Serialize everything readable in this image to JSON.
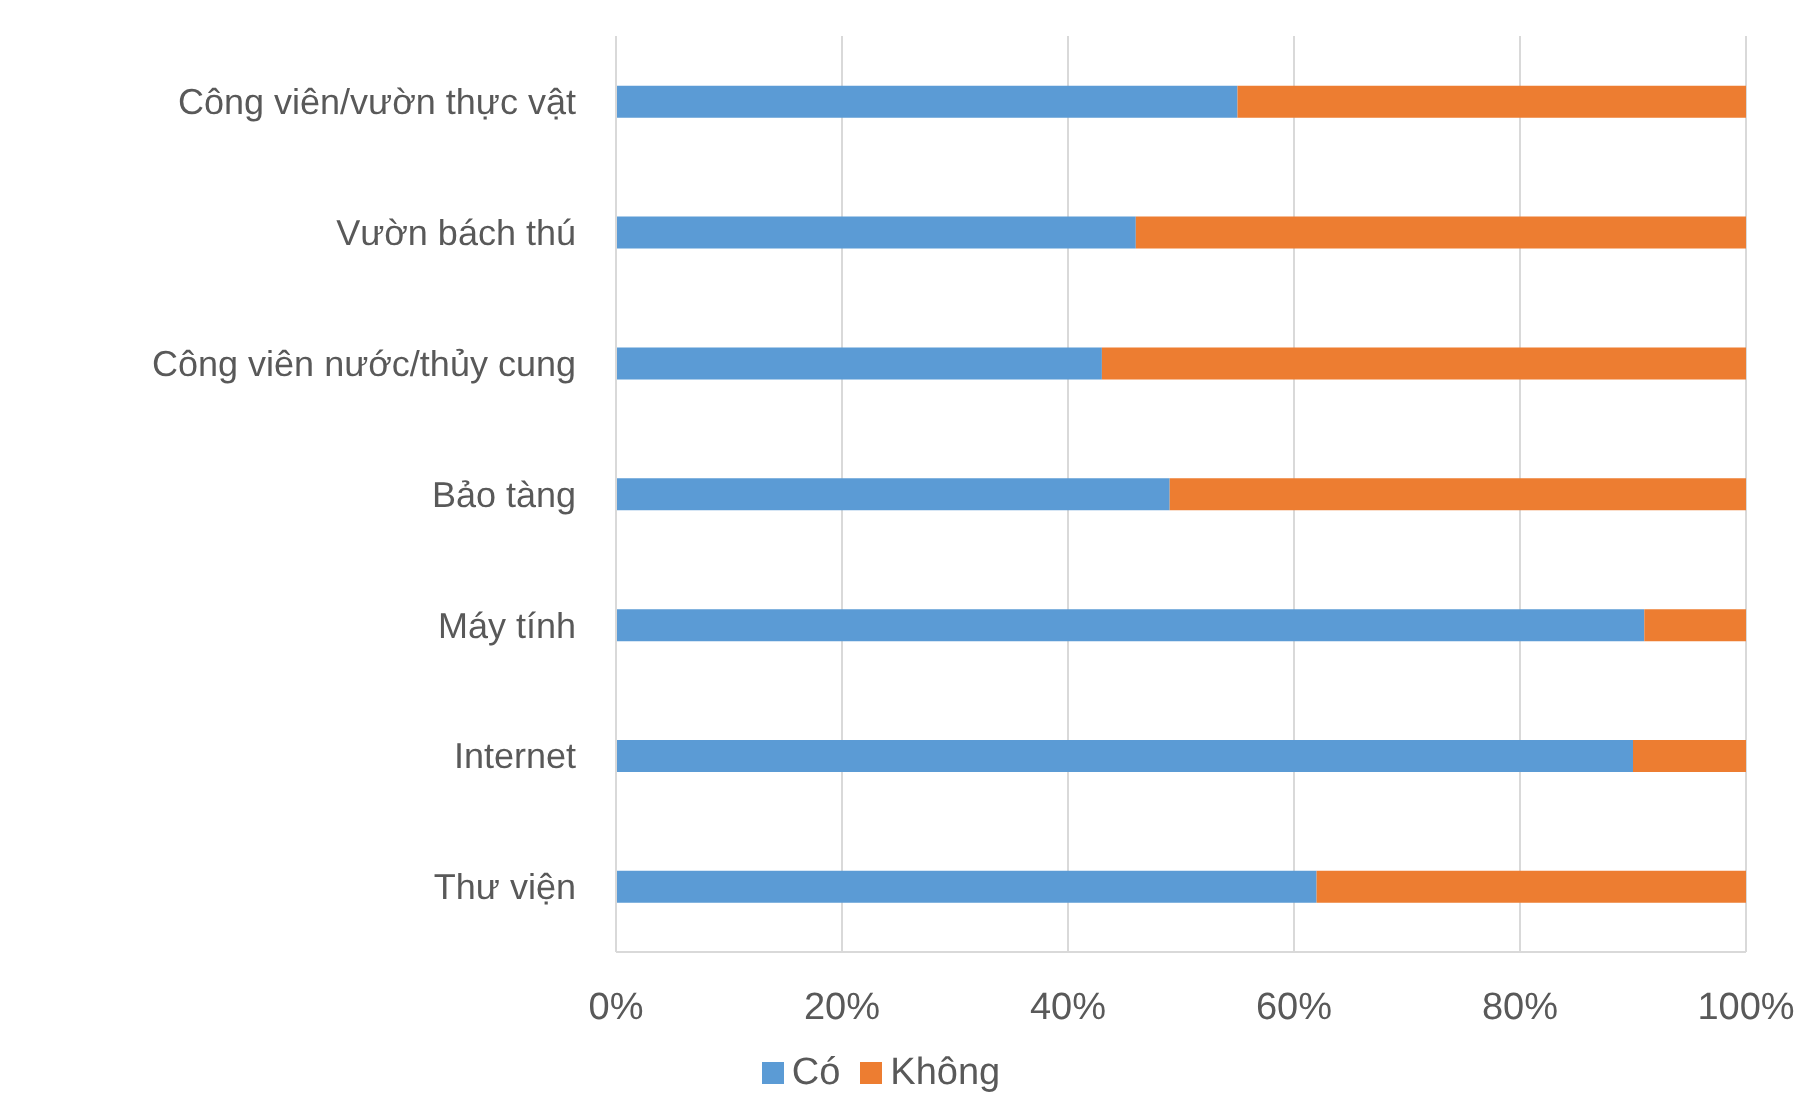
{
  "chart_data": {
    "type": "bar",
    "orientation": "horizontal",
    "stacked": true,
    "categories": [
      "Công viên/vườn thực vật",
      "Vườn bách thú",
      "Công viên nước/thủy cung",
      "Bảo tàng",
      "Máy tính",
      "Internet",
      "Thư viện"
    ],
    "series": [
      {
        "name": "Có",
        "color": "#5b9bd5",
        "values": [
          55,
          46,
          43,
          49,
          91,
          90,
          62
        ]
      },
      {
        "name": "Không",
        "color": "#ed7d31",
        "values": [
          45,
          54,
          57,
          51,
          9,
          10,
          38
        ]
      }
    ],
    "xlim": [
      0,
      100
    ],
    "xticks": [
      {
        "value": 0,
        "label": "0%"
      },
      {
        "value": 20,
        "label": "20%"
      },
      {
        "value": 40,
        "label": "40%"
      },
      {
        "value": 60,
        "label": "60%"
      },
      {
        "value": 80,
        "label": "80%"
      },
      {
        "value": 100,
        "label": "100%"
      }
    ],
    "grid": "x",
    "legend": "bottom"
  }
}
